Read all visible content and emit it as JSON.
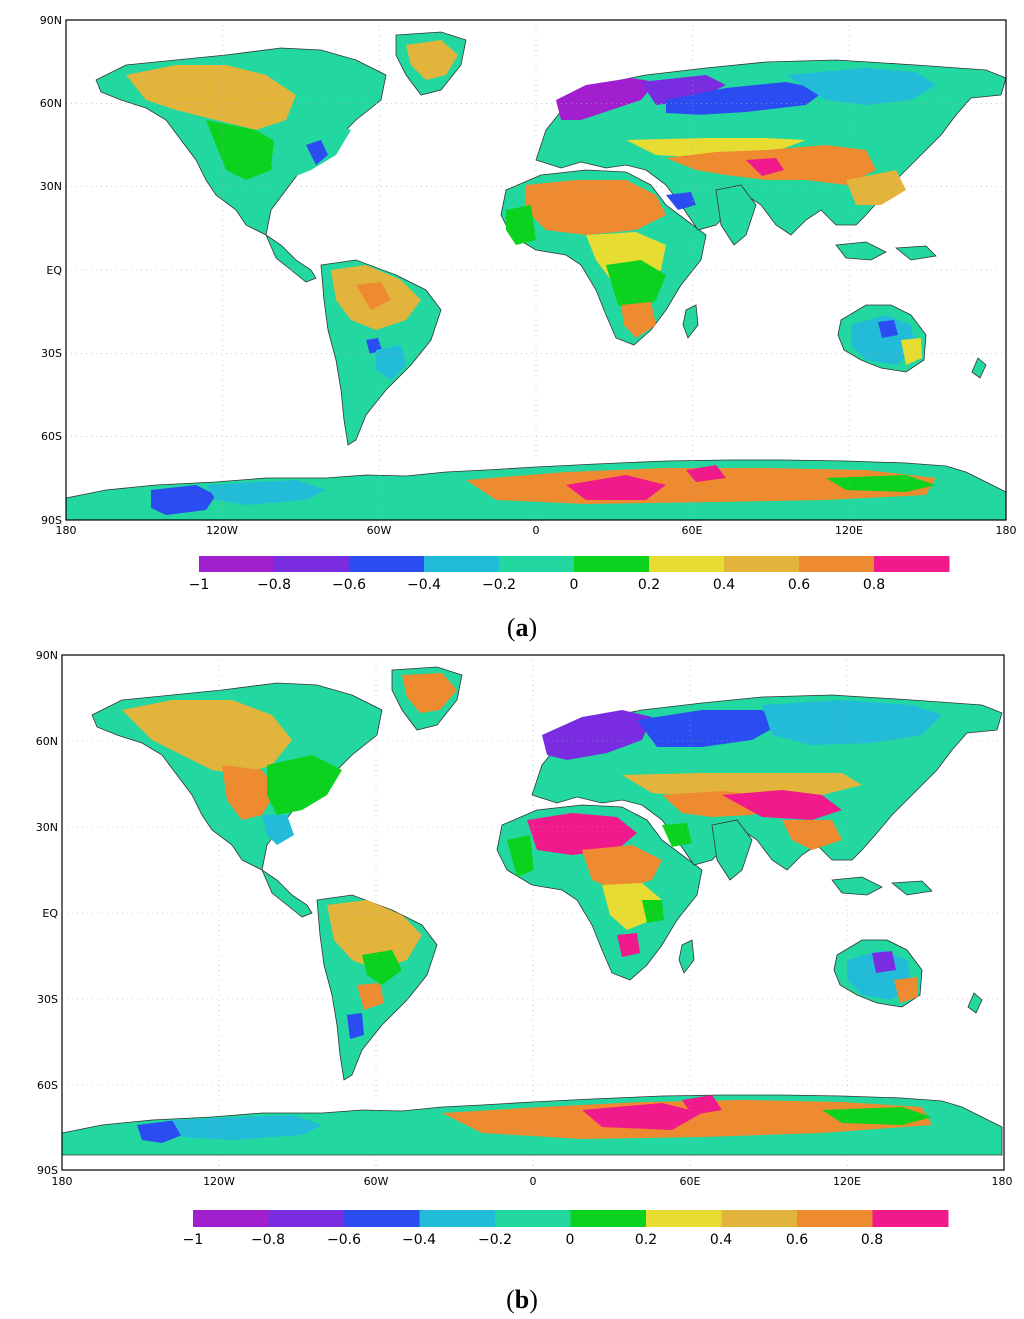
{
  "panels": [
    {
      "id": "a",
      "label_open": "(",
      "label_letter": "a",
      "label_close": ")",
      "lat_ticks": [
        "90N",
        "60N",
        "30N",
        "EQ",
        "30S",
        "60S",
        "90S"
      ],
      "lon_ticks": [
        "180",
        "120W",
        "60W",
        "0",
        "60E",
        "120E",
        "180"
      ],
      "colorbar_ticks": [
        "−1",
        "−0.8",
        "−0.6",
        "−0.4",
        "−0.2",
        "0",
        "0.2",
        "0.4",
        "0.6",
        "0.8"
      ]
    },
    {
      "id": "b",
      "label_open": "(",
      "label_letter": "b",
      "label_close": ")",
      "lat_ticks": [
        "90N",
        "60N",
        "30N",
        "EQ",
        "30S",
        "60S",
        "90S"
      ],
      "lon_ticks": [
        "180",
        "120W",
        "60W",
        "0",
        "60E",
        "120E",
        "180"
      ],
      "colorbar_ticks": [
        "−1",
        "−0.8",
        "−0.6",
        "−0.4",
        "−0.2",
        "0",
        "0.2",
        "0.4",
        "0.6",
        "0.8"
      ]
    }
  ],
  "colorbar": {
    "boundaries": [
      -1,
      -0.8,
      -0.6,
      -0.4,
      -0.2,
      0,
      0.2,
      0.4,
      0.6,
      0.8
    ],
    "colors": [
      "#a21fd0",
      "#7a2de0",
      "#2b4cf0",
      "#22bcd8",
      "#22d7a0",
      "#0ad21e",
      "#e6dc32",
      "#e2b43c",
      "#ee8a30",
      "#f01a8c"
    ]
  },
  "map": {
    "lat_range": [
      -90,
      90
    ],
    "lon_range": [
      -180,
      180
    ],
    "grid": "dotted 30-degree graticule"
  }
}
